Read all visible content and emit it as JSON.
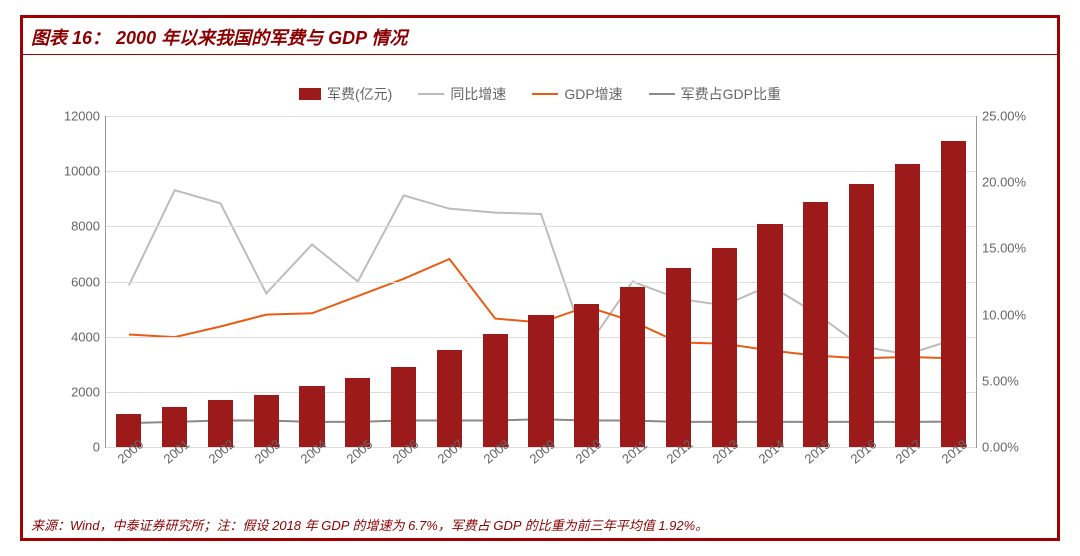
{
  "title_prefix": "图表 16：",
  "title": "2000 年以来我国的军费与 GDP 情况",
  "source": "来源：Wind，中泰证券研究所；注：假设 2018 年 GDP 的增速为 6.7%，军费占 GDP 的比重为前三年平均值 1.92%。",
  "chart": {
    "type": "bar+line",
    "background_color": "#ffffff",
    "grid_color": "#dddddd",
    "axis_color": "#999999",
    "text_color": "#666666",
    "categories": [
      "2000",
      "2001",
      "2002",
      "2003",
      "2004",
      "2005",
      "2006",
      "2007",
      "2008",
      "2009",
      "2010",
      "2011",
      "2012",
      "2013",
      "2014",
      "2015",
      "2016",
      "2017",
      "2018"
    ],
    "left_axis": {
      "min": 0,
      "max": 12000,
      "step": 2000,
      "format": "plain"
    },
    "right_axis": {
      "min": 0,
      "max": 25,
      "step": 5,
      "format": "percent2"
    },
    "bar_series": {
      "name": "军费(亿元)",
      "color": "#9c1a1a",
      "axis": "left",
      "bar_width_ratio": 0.55,
      "values": [
        1200,
        1450,
        1700,
        1900,
        2200,
        2500,
        2900,
        3500,
        4100,
        4800,
        5200,
        5800,
        6500,
        7200,
        8100,
        8900,
        9550,
        10250,
        11100
      ]
    },
    "line_series": [
      {
        "name": "同比增速",
        "color": "#bcbcbc",
        "width": 2,
        "axis": "right",
        "values": [
          12.2,
          19.4,
          18.4,
          11.6,
          15.3,
          12.5,
          19.0,
          18.0,
          17.7,
          17.6,
          7.5,
          12.5,
          11.2,
          10.7,
          12.2,
          10.1,
          7.6,
          7.0,
          8.1
        ]
      },
      {
        "name": "GDP增速",
        "color": "#e85c14",
        "width": 2,
        "axis": "right",
        "values": [
          8.5,
          8.3,
          9.1,
          10.0,
          10.1,
          11.4,
          12.7,
          14.2,
          9.7,
          9.4,
          10.6,
          9.5,
          7.9,
          7.8,
          7.3,
          6.9,
          6.7,
          6.8,
          6.7
        ]
      },
      {
        "name": "军费占GDP比重",
        "color": "#8a8a8a",
        "width": 2,
        "axis": "right",
        "values": [
          1.8,
          1.9,
          2.0,
          2.0,
          1.9,
          1.9,
          2.0,
          2.0,
          2.0,
          2.1,
          2.0,
          2.0,
          1.9,
          1.9,
          1.9,
          1.9,
          1.9,
          1.9,
          1.92
        ]
      }
    ],
    "legend_labels": [
      "军费(亿元)",
      "同比增速",
      "GDP增速",
      "军费占GDP比重"
    ],
    "x_label_rotation_deg": -40,
    "label_fontsize": 13
  }
}
